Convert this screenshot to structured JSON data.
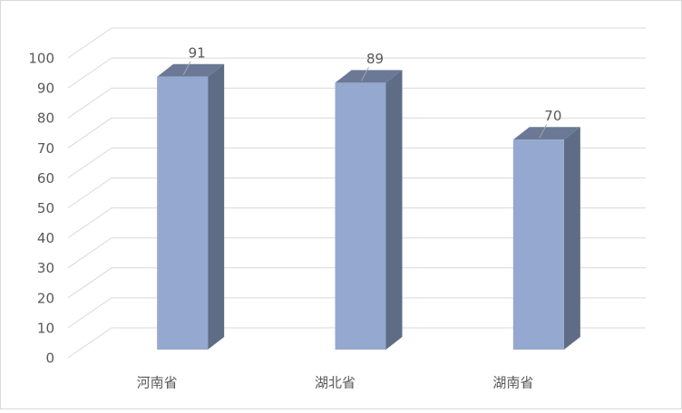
{
  "chart_data": {
    "type": "bar3d",
    "categories": [
      "河南省",
      "湖北省",
      "湖南省"
    ],
    "values": [
      91,
      89,
      70
    ],
    "color": "#94a8d0",
    "ylim": [
      0,
      100
    ],
    "yticks": [
      0,
      10,
      20,
      30,
      40,
      50,
      60,
      70,
      80,
      90,
      100
    ],
    "grid": true
  }
}
